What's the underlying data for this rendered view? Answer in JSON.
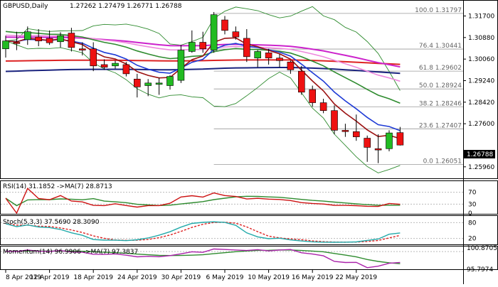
{
  "header": {
    "symbol_tf": "GBPUSD,Daily",
    "ohlc": "1.27262 1.27479 1.26771 1.26788"
  },
  "price_axis_labels": [
    "1.31700",
    "1.30880",
    "1.30060",
    "1.29240",
    "1.28420",
    "1.27600",
    "1.25960"
  ],
  "current_price_label": "1.26788",
  "fib_levels": [
    {
      "label": "100.0 1.31797",
      "value": 1.31797
    },
    {
      "label": "76.4 1.30441",
      "value": 1.30441
    },
    {
      "label": "61.8 1.29602",
      "value": 1.29602
    },
    {
      "label": "50.0 1.28924",
      "value": 1.28924
    },
    {
      "label": "38.2 1.28246",
      "value": 1.28246
    },
    {
      "label": "23.6 1.27407",
      "value": 1.27407
    },
    {
      "label": "0.0 1.26051",
      "value": 1.26051
    }
  ],
  "x_axis_labels": [
    "8 Apr 2019",
    "12 Apr 2019",
    "18 Apr 2019",
    "24 Apr 2019",
    "30 Apr 2019",
    "6 May 2019",
    "10 May 2019",
    "16 May 2019",
    "22 May 2019"
  ],
  "colors": {
    "bull": "#22bb22",
    "bear": "#ee1111",
    "ma_blue": "#1f3bd6",
    "ma_darkred": "#9b1111",
    "ma_green": "#2e8b2e",
    "ma_magenta": "#cc22cc",
    "ma_pink": "#ee88dd",
    "ma_navy": "#1a237e",
    "ma_red_flat": "#dd2222",
    "bollinger": "#2e8b2e",
    "rsi": "#cc1111",
    "rsi_ma": "#2e8b2e",
    "stoch_main": "#22aaaa",
    "stoch_signal": "#dd2222",
    "mom_main": "#aa22aa",
    "mom_ma": "#2e8b2e"
  },
  "indicators": {
    "rsi": {
      "label": "RSI(14) 31.1852  ->MA(7) 28.8713",
      "axis_labels": [
        "70",
        "30",
        "0"
      ],
      "levels": [
        70,
        30
      ]
    },
    "stoch": {
      "label": "Stoch(5,3,3) 37.5690 28.3090",
      "axis_labels": [
        "80",
        "20"
      ],
      "levels": [
        80,
        20
      ]
    },
    "momentum": {
      "label": "Momentum(14) 96.9906  ->MA(7) 97.3837",
      "axis_labels": [
        "100.8705",
        "95.7974"
      ],
      "levels": [
        100
      ]
    }
  },
  "chart_data": {
    "type": "candlestick",
    "title": "GBPUSD,Daily",
    "ylim": [
      1.2555,
      1.322
    ],
    "candles": [
      {
        "o": 1.3045,
        "h": 1.3095,
        "l": 1.3012,
        "c": 1.3075
      },
      {
        "o": 1.307,
        "h": 1.311,
        "l": 1.304,
        "c": 1.3065
      },
      {
        "o": 1.308,
        "h": 1.313,
        "l": 1.306,
        "c": 1.311
      },
      {
        "o": 1.309,
        "h": 1.312,
        "l": 1.3055,
        "c": 1.3075
      },
      {
        "o": 1.3085,
        "h": 1.3115,
        "l": 1.306,
        "c": 1.3068
      },
      {
        "o": 1.3072,
        "h": 1.3108,
        "l": 1.305,
        "c": 1.3095
      },
      {
        "o": 1.3105,
        "h": 1.3125,
        "l": 1.3035,
        "c": 1.305
      },
      {
        "o": 1.3045,
        "h": 1.307,
        "l": 1.302,
        "c": 1.304
      },
      {
        "o": 1.3045,
        "h": 1.307,
        "l": 1.296,
        "c": 1.298
      },
      {
        "o": 1.2985,
        "h": 1.3005,
        "l": 1.2965,
        "c": 1.2975
      },
      {
        "o": 1.298,
        "h": 1.3,
        "l": 1.297,
        "c": 1.299
      },
      {
        "o": 1.2985,
        "h": 1.2995,
        "l": 1.294,
        "c": 1.295
      },
      {
        "o": 1.293,
        "h": 1.295,
        "l": 1.286,
        "c": 1.29
      },
      {
        "o": 1.2905,
        "h": 1.293,
        "l": 1.2865,
        "c": 1.2915
      },
      {
        "o": 1.291,
        "h": 1.2935,
        "l": 1.287,
        "c": 1.2915
      },
      {
        "o": 1.2905,
        "h": 1.2945,
        "l": 1.289,
        "c": 1.294
      },
      {
        "o": 1.2925,
        "h": 1.306,
        "l": 1.2915,
        "c": 1.304
      },
      {
        "o": 1.3035,
        "h": 1.3115,
        "l": 1.303,
        "c": 1.307
      },
      {
        "o": 1.307,
        "h": 1.311,
        "l": 1.303,
        "c": 1.3045
      },
      {
        "o": 1.304,
        "h": 1.3185,
        "l": 1.303,
        "c": 1.3175
      },
      {
        "o": 1.3155,
        "h": 1.317,
        "l": 1.31,
        "c": 1.3115
      },
      {
        "o": 1.311,
        "h": 1.313,
        "l": 1.308,
        "c": 1.309
      },
      {
        "o": 1.3085,
        "h": 1.312,
        "l": 1.2995,
        "c": 1.3015
      },
      {
        "o": 1.301,
        "h": 1.304,
        "l": 1.2975,
        "c": 1.3035
      },
      {
        "o": 1.303,
        "h": 1.3045,
        "l": 1.2985,
        "c": 1.301
      },
      {
        "o": 1.301,
        "h": 1.3025,
        "l": 1.2975,
        "c": 1.3
      },
      {
        "o": 1.2995,
        "h": 1.3,
        "l": 1.295,
        "c": 1.2965
      },
      {
        "o": 1.296,
        "h": 1.298,
        "l": 1.287,
        "c": 1.288
      },
      {
        "o": 1.289,
        "h": 1.2905,
        "l": 1.2825,
        "c": 1.284
      },
      {
        "o": 1.284,
        "h": 1.2855,
        "l": 1.28,
        "c": 1.281
      },
      {
        "o": 1.281,
        "h": 1.283,
        "l": 1.272,
        "c": 1.2735
      },
      {
        "o": 1.2735,
        "h": 1.276,
        "l": 1.271,
        "c": 1.273
      },
      {
        "o": 1.273,
        "h": 1.2795,
        "l": 1.2695,
        "c": 1.271
      },
      {
        "o": 1.2705,
        "h": 1.2715,
        "l": 1.2615,
        "c": 1.267
      },
      {
        "o": 1.2665,
        "h": 1.272,
        "l": 1.261,
        "c": 1.266
      },
      {
        "o": 1.2665,
        "h": 1.2735,
        "l": 1.2655,
        "c": 1.2725
      },
      {
        "o": 1.27262,
        "h": 1.27479,
        "l": 1.26771,
        "c": 1.26788
      }
    ]
  }
}
